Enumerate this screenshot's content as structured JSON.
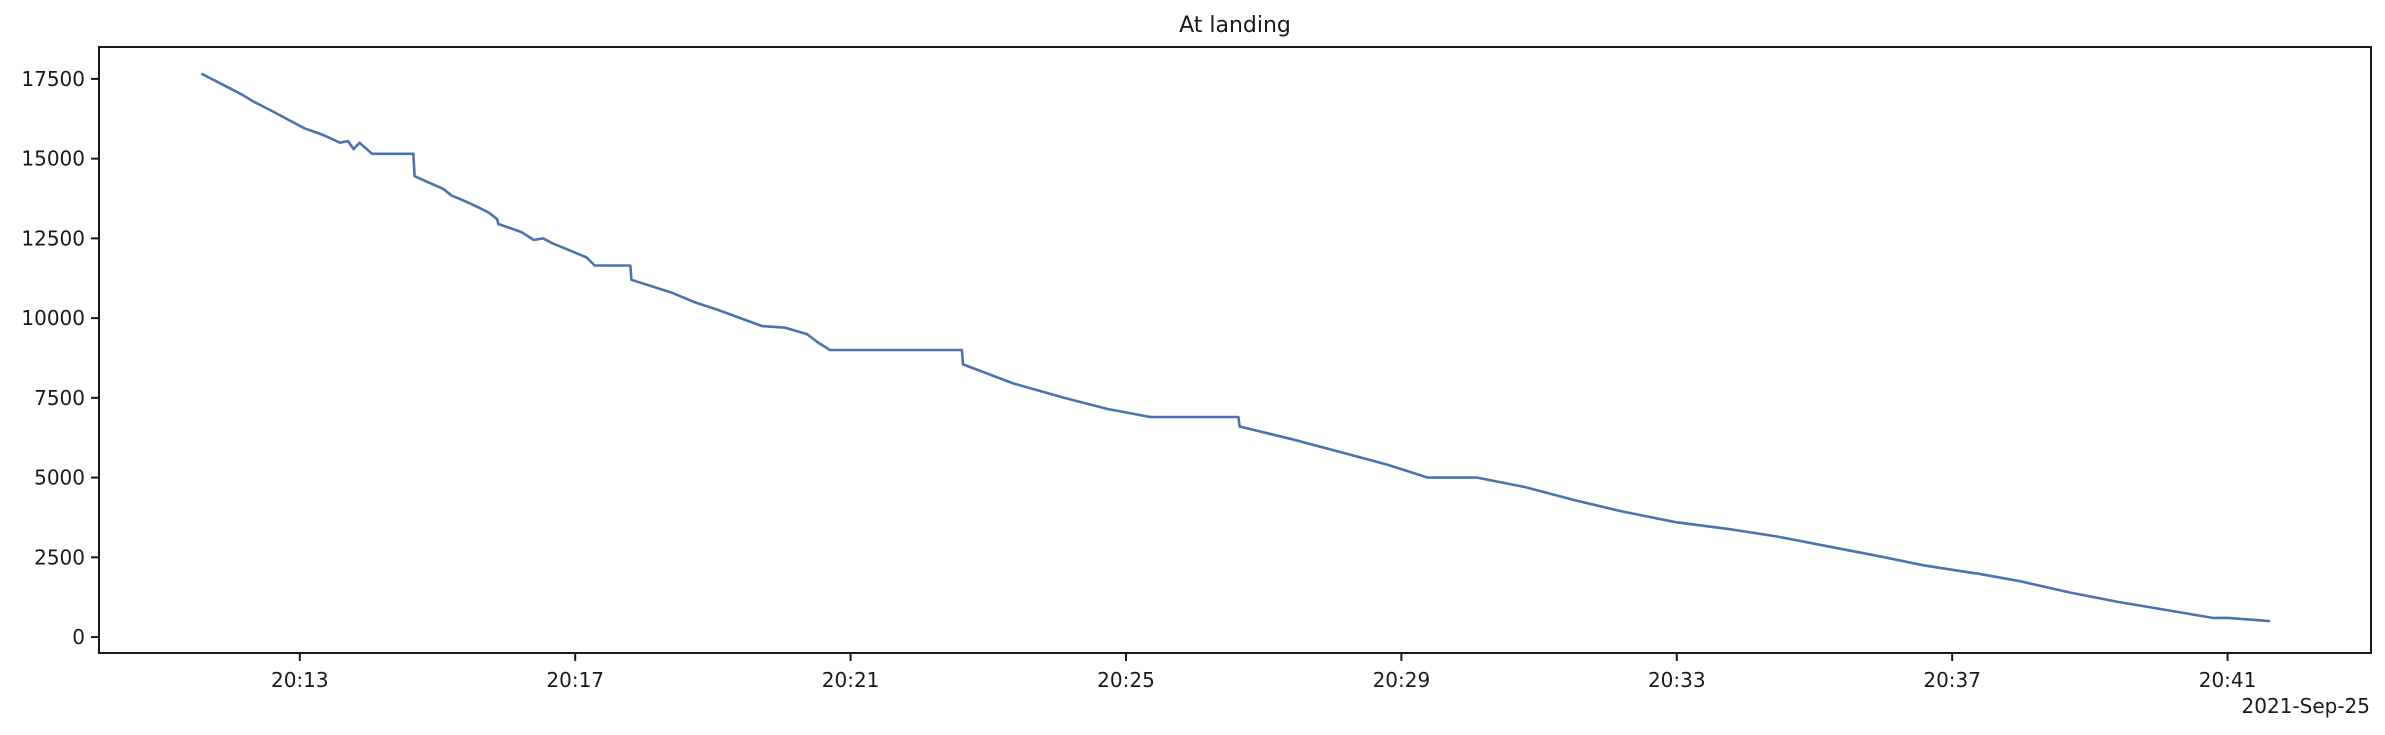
{
  "chart_data": {
    "type": "line",
    "title": "At landing",
    "xlabel": "",
    "ylabel": "",
    "x_offset_label": "2021-Sep-25",
    "xlim": [
      "20:10:05",
      "20:43:05"
    ],
    "ylim": [
      -500,
      18500
    ],
    "grid": false,
    "x_ticks": [
      "20:13",
      "20:17",
      "20:21",
      "20:25",
      "20:29",
      "20:33",
      "20:37",
      "20:41"
    ],
    "y_ticks": [
      0,
      2500,
      5000,
      7500,
      10000,
      12500,
      15000,
      17500
    ],
    "colors": {
      "series": "#4C72B0"
    },
    "series": [
      {
        "x": [
          "20:11:35",
          "20:11:54",
          "20:12:10",
          "20:12:19",
          "20:12:38",
          "20:12:51",
          "20:13:04",
          "20:13:16",
          "20:13:23",
          "20:13:35",
          "20:13:42",
          "20:13:47",
          "20:13:52",
          "20:14:03",
          "20:14:08",
          "20:14:11",
          "20:14:39",
          "20:14:40",
          "20:15:05",
          "20:15:12",
          "20:15:25",
          "20:15:37",
          "20:15:45",
          "20:15:52",
          "20:15:53",
          "20:16:13",
          "20:16:24",
          "20:16:32",
          "20:16:40",
          "20:17:00",
          "20:17:10",
          "20:17:17",
          "20:17:48",
          "20:17:49",
          "20:18:24",
          "20:18:44",
          "20:19:05",
          "20:19:24",
          "20:19:43",
          "20:20:03",
          "20:20:22",
          "20:20:31",
          "20:20:42",
          "20:21:04",
          "20:21:19",
          "20:21:43",
          "20:22:37",
          "20:22:38",
          "20:23:22",
          "20:24:06",
          "20:24:44",
          "20:25:21",
          "20:25:59",
          "20:26:38",
          "20:26:39",
          "20:27:25",
          "20:28:07",
          "20:28:48",
          "20:29:23",
          "20:30:05",
          "20:30:06",
          "20:30:48",
          "20:31:30",
          "20:32:11",
          "20:32:59",
          "20:33:42",
          "20:33:43",
          "20:34:28",
          "20:35:11",
          "20:35:54",
          "20:36:35",
          "20:37:20",
          "20:37:21",
          "20:37:59",
          "20:38:42",
          "20:39:25",
          "20:40:06",
          "20:40:47",
          "20:41:00",
          "20:41:01",
          "20:41:36"
        ],
        "values": [
          17650,
          17300,
          17000,
          16800,
          16450,
          16200,
          15950,
          15800,
          15700,
          15500,
          15550,
          15300,
          15500,
          15150,
          15150,
          15150,
          15150,
          14450,
          14050,
          13850,
          13650,
          13450,
          13300,
          13100,
          12950,
          12700,
          12450,
          12500,
          12350,
          12050,
          11900,
          11650,
          11650,
          11200,
          10800,
          10500,
          10250,
          10000,
          9750,
          9700,
          9500,
          9250,
          9000,
          9000,
          9000,
          9000,
          9000,
          8550,
          7950,
          7500,
          7150,
          6900,
          6900,
          6900,
          6600,
          6200,
          5800,
          5400,
          5000,
          5000,
          5000,
          4700,
          4300,
          3950,
          3600,
          3400,
          3400,
          3150,
          2850,
          2550,
          2250,
          2000,
          2000,
          1750,
          1400,
          1100,
          850,
          600,
          600,
          600,
          500
        ]
      }
    ]
  }
}
